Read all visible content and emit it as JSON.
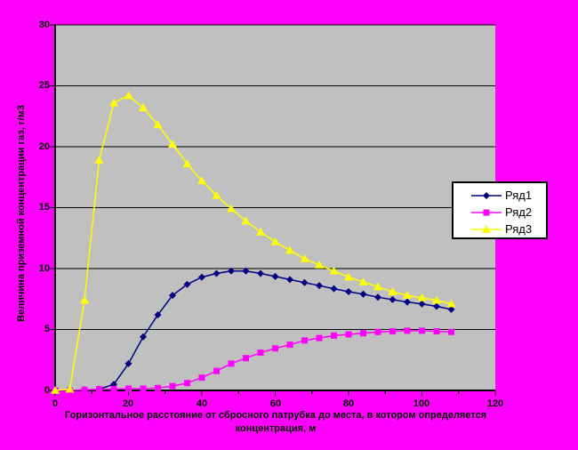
{
  "chart": {
    "background_color": "#FF00FF",
    "plot_area_color": "#C0C0C0",
    "axis_color": "#000000",
    "gridline_color": "#000000",
    "text_color": "#000000",
    "legend": {
      "background_color": "#FFFFFF",
      "border_color": "#000000"
    }
  },
  "chart_data": {
    "type": "line",
    "title": "",
    "xlabel": "Горизонтальное расстояние от сбросного патрубка до места, в котором определяется концентрация, м",
    "ylabel": "Величина приземной концентрации газ, г/м3",
    "xlim": [
      0,
      120
    ],
    "ylim": [
      0,
      30
    ],
    "x_ticks": [
      0,
      20,
      40,
      60,
      80,
      100,
      120
    ],
    "x_minor_ticks": [
      10,
      30,
      50,
      70,
      90,
      110
    ],
    "y_ticks": [
      0,
      5,
      10,
      15,
      20,
      25,
      30
    ],
    "grid": "horizontal-only",
    "legend_position": "right",
    "x": [
      0,
      4,
      8,
      12,
      16,
      20,
      24,
      28,
      32,
      36,
      40,
      44,
      48,
      52,
      56,
      60,
      64,
      68,
      72,
      76,
      80,
      84,
      88,
      92,
      96,
      100,
      104,
      108
    ],
    "series": [
      {
        "name": "Ряд1",
        "color": "#000080",
        "marker": "diamond",
        "values": [
          0,
          0,
          0.05,
          0.1,
          0.5,
          2.2,
          4.4,
          6.2,
          7.8,
          8.7,
          9.3,
          9.6,
          9.8,
          9.8,
          9.6,
          9.35,
          9.1,
          8.85,
          8.6,
          8.35,
          8.1,
          7.9,
          7.65,
          7.45,
          7.25,
          7.1,
          6.9,
          6.65
        ]
      },
      {
        "name": "Ряд2",
        "color": "#FF00FF",
        "marker": "square",
        "values": [
          0,
          0,
          0.05,
          0.1,
          0.1,
          0.15,
          0.15,
          0.2,
          0.35,
          0.6,
          1.05,
          1.6,
          2.2,
          2.65,
          3.1,
          3.45,
          3.75,
          4.1,
          4.3,
          4.5,
          4.6,
          4.7,
          4.8,
          4.85,
          4.9,
          4.9,
          4.85,
          4.8
        ]
      },
      {
        "name": "Ряд3",
        "color": "#FFFF00",
        "marker": "triangle",
        "values": [
          0,
          0.1,
          7.4,
          18.9,
          23.6,
          24.2,
          23.2,
          21.8,
          20.2,
          18.6,
          17.2,
          16,
          14.9,
          13.9,
          13,
          12.2,
          11.5,
          10.8,
          10.3,
          9.8,
          9.3,
          8.9,
          8.5,
          8.1,
          7.8,
          7.6,
          7.4,
          7.1
        ]
      }
    ]
  }
}
